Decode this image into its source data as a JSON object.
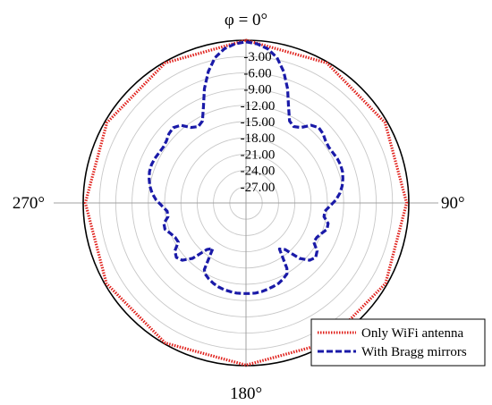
{
  "chart_data": {
    "type": "polar-line",
    "angle_unit": "degrees",
    "angle_labels": [
      "φ = 0°",
      "90°",
      "180°",
      "270°"
    ],
    "radial_unit": "dB",
    "radial_range": [
      -30,
      0
    ],
    "radial_ticks": [
      -3,
      -6,
      -9,
      -12,
      -15,
      -18,
      -21,
      -24,
      -27
    ],
    "radial_tick_labels": [
      "-3.00",
      "-6.00",
      "-9.00",
      "-12.00",
      "-15.00",
      "-18.00",
      "-21.00",
      "-24.00",
      "-27.00"
    ],
    "grid": true,
    "legend_position": "bottom-right",
    "series": [
      {
        "name": "Only WiFi antenna",
        "color": "#e0201b",
        "style": "dotted",
        "theta": [
          0,
          30,
          60,
          90,
          120,
          150,
          180,
          210,
          240,
          270,
          300,
          330,
          360
        ],
        "r": [
          0,
          -0.2,
          -0.4,
          -0.4,
          -0.3,
          -0.2,
          -0.1,
          -0.2,
          -0.3,
          -0.4,
          -0.4,
          -0.2,
          0
        ]
      },
      {
        "name": "With Bragg mirrors",
        "color": "#1a1aa8",
        "style": "dashed",
        "theta": [
          0,
          4,
          8,
          12,
          16,
          20,
          24,
          28,
          32,
          36,
          40,
          44,
          48,
          52,
          56,
          60,
          64,
          68,
          72,
          76,
          80,
          84,
          88,
          92,
          96,
          100,
          104,
          108,
          112,
          116,
          120,
          124,
          128,
          132,
          136,
          140,
          144,
          148,
          150,
          154,
          158,
          162,
          166,
          170,
          174,
          178,
          182,
          186,
          190,
          194,
          198,
          202,
          206,
          210,
          212,
          216,
          220,
          224,
          228,
          232,
          236,
          240,
          244,
          248,
          252,
          256,
          260,
          264,
          268,
          272,
          276,
          280,
          284,
          288,
          292,
          296,
          300,
          304,
          308,
          312,
          316,
          320,
          324,
          328,
          332,
          336,
          340,
          344,
          348,
          352,
          356,
          360
        ],
        "r": [
          -0.3,
          -0.6,
          -1.3,
          -2.6,
          -4.8,
          -7.6,
          -10.7,
          -12.9,
          -13.4,
          -12.8,
          -11.3,
          -10.7,
          -10.9,
          -11.4,
          -11.6,
          -11.5,
          -11.3,
          -11.2,
          -11.3,
          -11.6,
          -12.0,
          -12.6,
          -13.4,
          -14.5,
          -15.4,
          -15.4,
          -14.4,
          -14.3,
          -15.0,
          -15.5,
          -15.6,
          -14.2,
          -13.7,
          -14.2,
          -15.8,
          -18.8,
          -19.5,
          -15.8,
          -14.9,
          -14.4,
          -14.0,
          -13.8,
          -13.6,
          -13.4,
          -13.3,
          -13.3,
          -13.3,
          -13.3,
          -13.4,
          -13.5,
          -13.7,
          -14.0,
          -14.4,
          -14.9,
          -15.5,
          -19.6,
          -18.8,
          -15.8,
          -14.2,
          -13.7,
          -14.2,
          -15.6,
          -15.5,
          -15.0,
          -14.3,
          -14.4,
          -15.4,
          -15.4,
          -14.5,
          -13.4,
          -12.6,
          -12.0,
          -11.6,
          -11.3,
          -11.2,
          -11.3,
          -11.5,
          -11.6,
          -11.4,
          -10.9,
          -10.7,
          -11.3,
          -12.8,
          -13.4,
          -12.9,
          -10.7,
          -7.6,
          -4.8,
          -2.6,
          -1.3,
          -0.6,
          -0.3
        ]
      }
    ]
  }
}
